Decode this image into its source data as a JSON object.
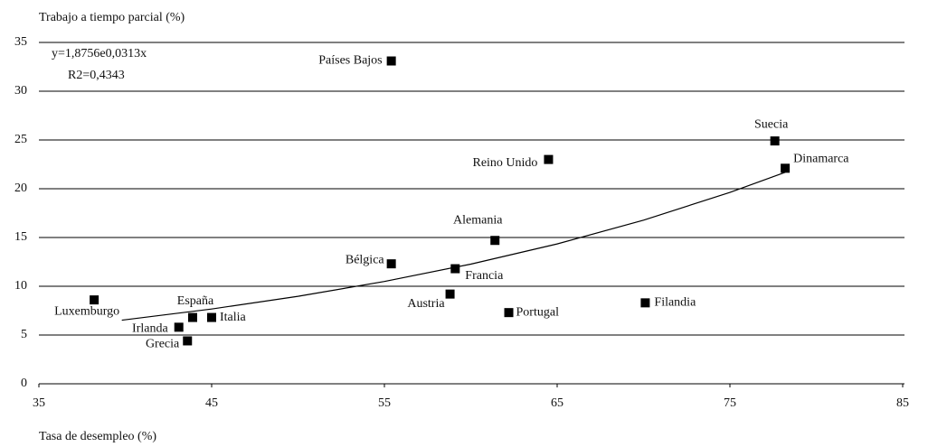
{
  "chart_data": {
    "type": "scatter",
    "title": "Trabajo a tiempo parcial (%)",
    "x_label": "Tasa de desempleo (%)",
    "annotations": [
      "y=1,8756e0,0313x",
      "R2=0,4343"
    ],
    "xlim": [
      35,
      85
    ],
    "xticks": [
      35,
      45,
      55,
      65,
      75,
      85
    ],
    "ylim": [
      0,
      35
    ],
    "yticks": [
      0,
      5,
      10,
      15,
      20,
      25,
      30,
      35
    ],
    "grid": true,
    "color": "#000000",
    "labels": [
      "Países Bajos",
      "Suecia",
      "Dinamarca",
      "Reino Unido",
      "Alemania",
      "Bélgica",
      "Francia",
      "Austria",
      "Portugal",
      "Filandia",
      "Luxemburgo",
      "España",
      "Italia",
      "Irlanda",
      "Grecia"
    ],
    "x": [
      55.4,
      77.6,
      78.2,
      64.5,
      61.4,
      55.4,
      59.1,
      58.8,
      62.2,
      70.1,
      38.2,
      43.9,
      45.0,
      43.1,
      43.6
    ],
    "values": [
      33.1,
      24.9,
      22.1,
      23.0,
      14.7,
      12.3,
      11.8,
      9.2,
      7.3,
      8.3,
      8.6,
      6.8,
      6.8,
      5.8,
      4.4
    ],
    "trendline": {
      "x": [
        39.8,
        45,
        50,
        55,
        60,
        65,
        70,
        75,
        78.2
      ],
      "values": [
        6.52,
        7.67,
        8.97,
        10.49,
        12.27,
        14.34,
        16.78,
        19.62,
        21.68
      ]
    }
  }
}
